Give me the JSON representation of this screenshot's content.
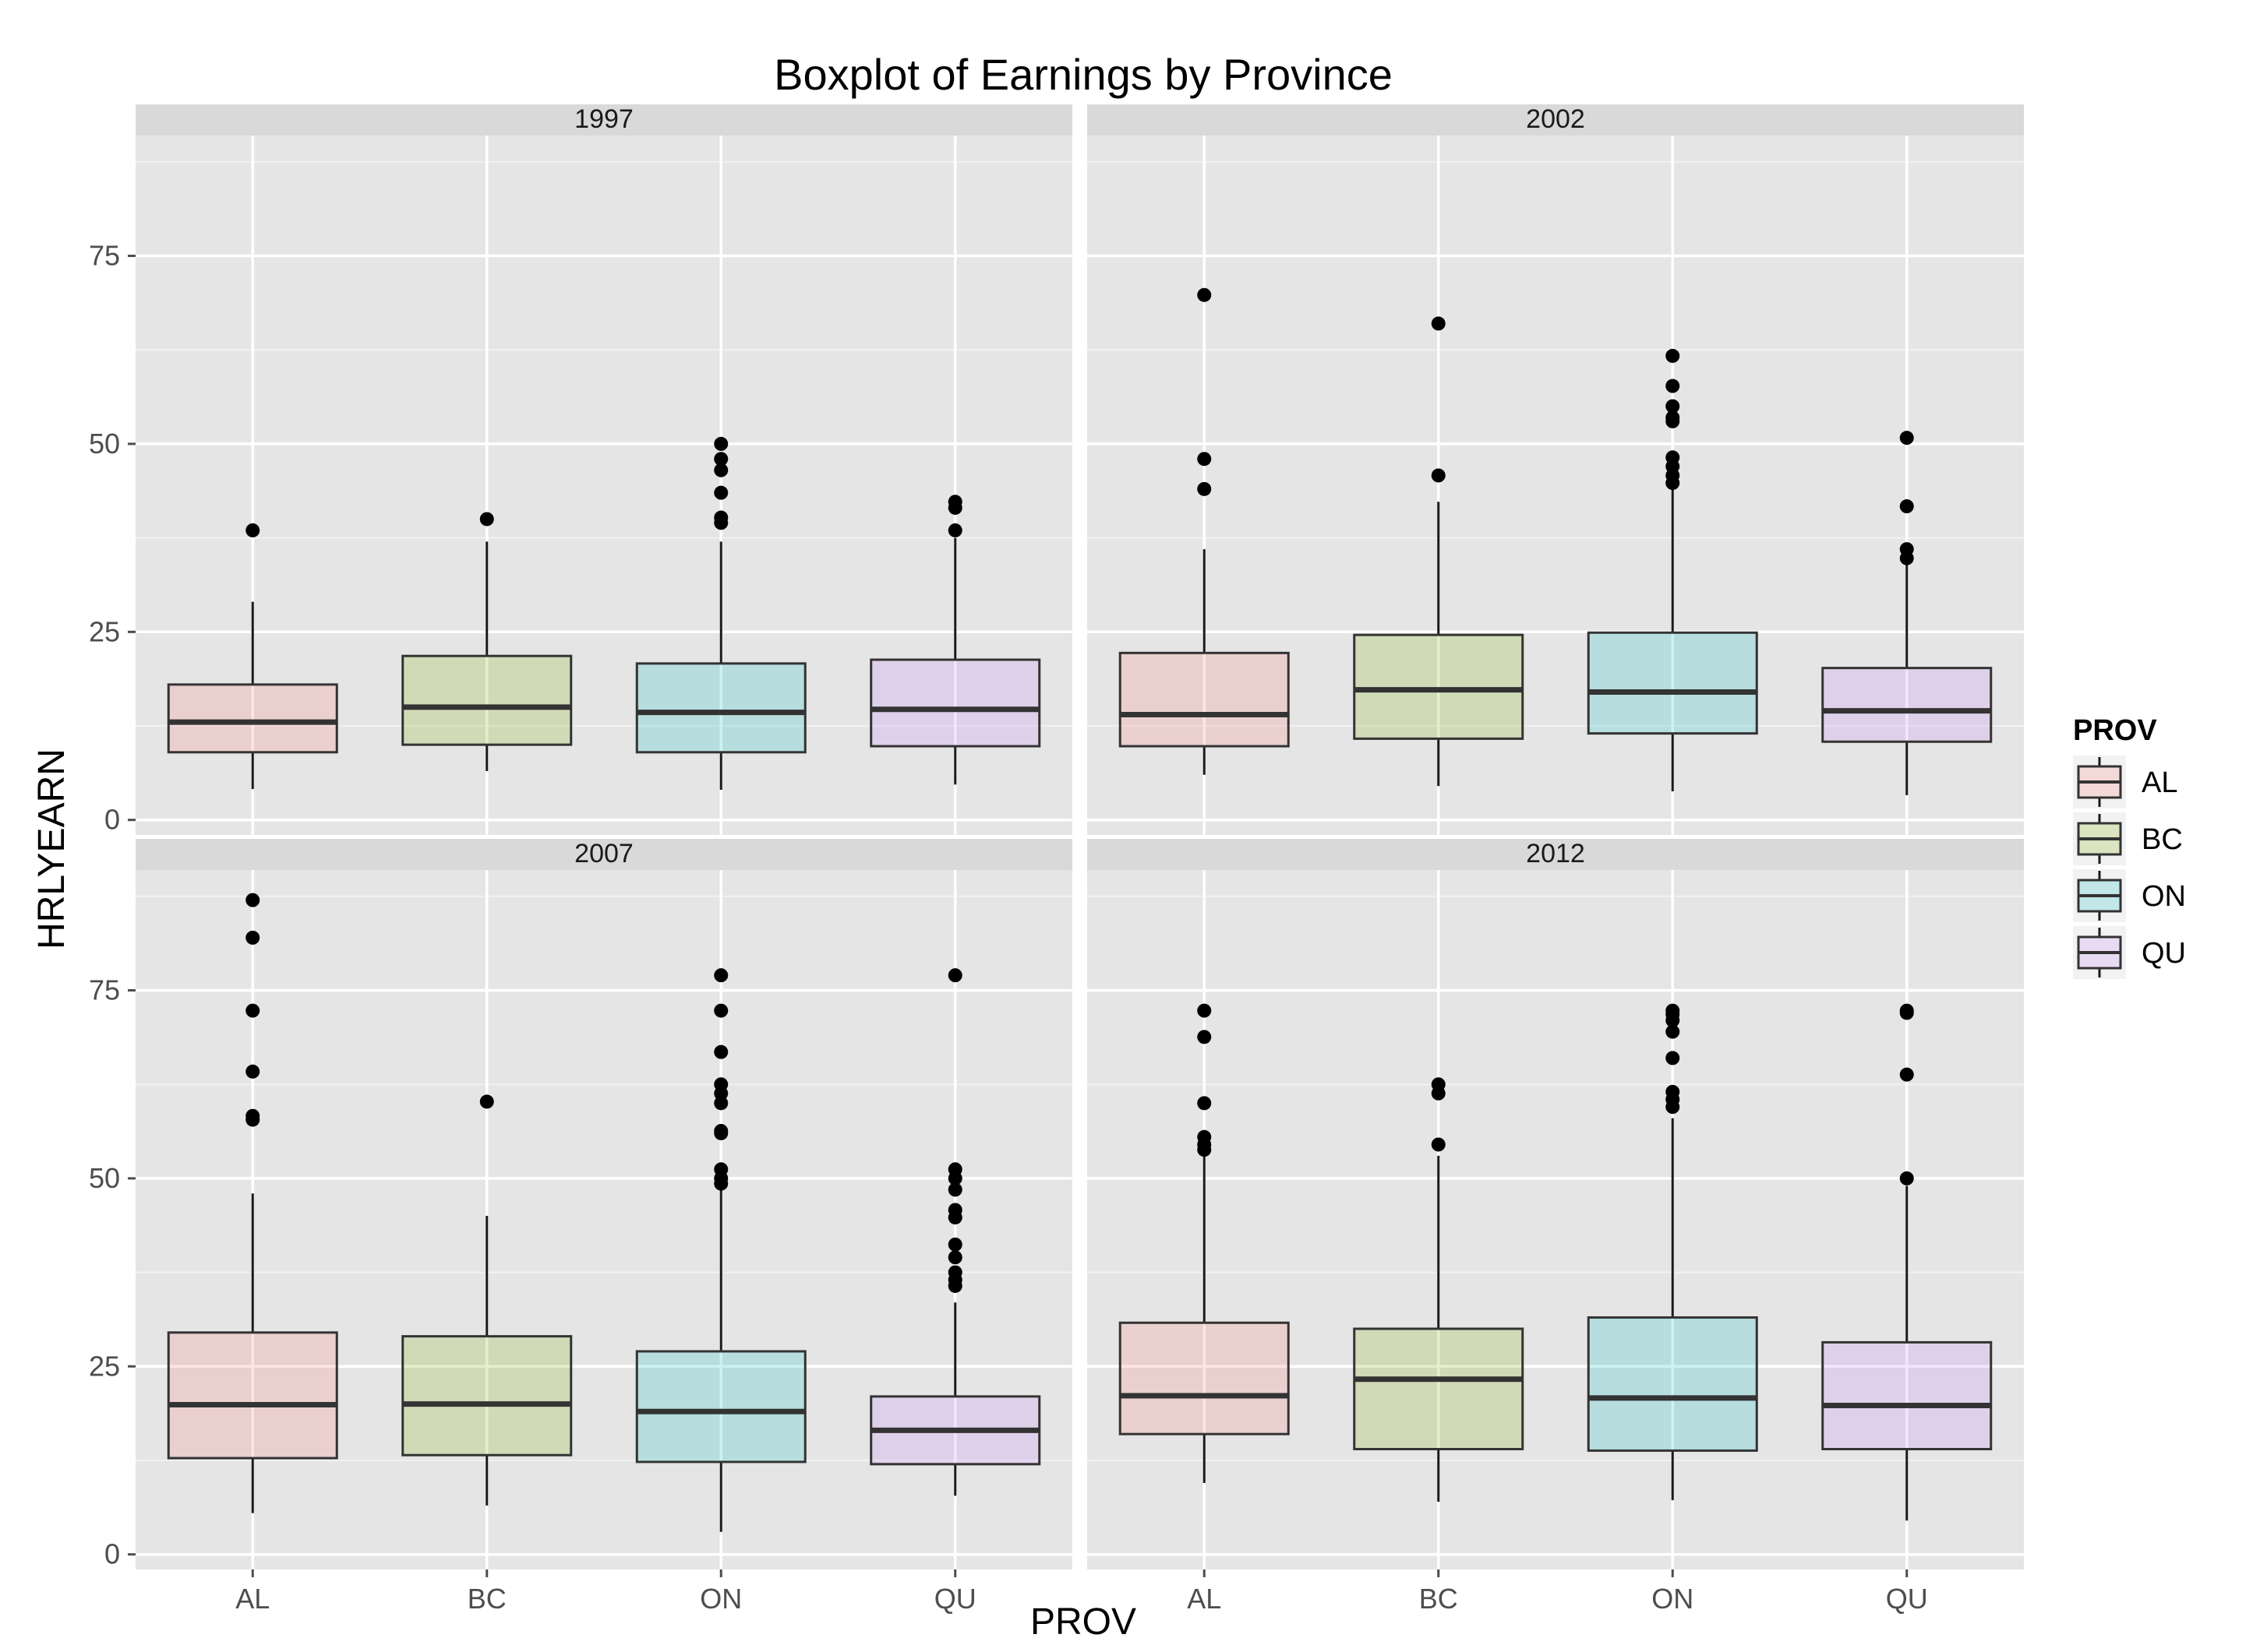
{
  "chart_data": {
    "type": "boxplot",
    "title": "Boxplot of Earnings by Province",
    "xlabel": "PROV",
    "ylabel": "HRLYEARN",
    "categories": [
      "AL",
      "BC",
      "ON",
      "QU"
    ],
    "yticks": [
      0,
      25,
      50,
      75
    ],
    "ylim": [
      -2,
      91
    ],
    "grid": true,
    "legend": {
      "title": "PROV",
      "placement": "right",
      "items": [
        "AL",
        "BC",
        "ON",
        "QU"
      ]
    },
    "colors": {
      "AL": "#f8766d",
      "BC": "#7cae00",
      "ON": "#00bfc4",
      "QU": "#c77cff"
    },
    "panels": [
      {
        "label": "1997",
        "boxes": [
          {
            "category": "AL",
            "whisker_low": 4.1,
            "q1": 9.0,
            "median": 13.0,
            "q3": 18.0,
            "whisker_high": 29.0,
            "outliers": [
              38.5
            ]
          },
          {
            "category": "BC",
            "whisker_low": 6.5,
            "q1": 10.0,
            "median": 15.0,
            "q3": 21.8,
            "whisker_high": 37.0,
            "outliers": [
              40.0
            ]
          },
          {
            "category": "ON",
            "whisker_low": 4.0,
            "q1": 9.0,
            "median": 14.3,
            "q3": 20.8,
            "whisker_high": 37.0,
            "outliers": [
              39.5,
              40.2,
              43.5,
              46.5,
              48.0,
              50.0
            ]
          },
          {
            "category": "QU",
            "whisker_low": 4.7,
            "q1": 9.8,
            "median": 14.7,
            "q3": 21.3,
            "whisker_high": 37.5,
            "outliers": [
              38.5,
              41.5,
              42.3
            ]
          }
        ]
      },
      {
        "label": "2002",
        "boxes": [
          {
            "category": "AL",
            "whisker_low": 6.0,
            "q1": 9.8,
            "median": 14.0,
            "q3": 22.2,
            "whisker_high": 36.0,
            "outliers": [
              44.0,
              48.0,
              69.8
            ]
          },
          {
            "category": "BC",
            "whisker_low": 4.5,
            "q1": 10.8,
            "median": 17.3,
            "q3": 24.6,
            "whisker_high": 42.3,
            "outliers": [
              45.8,
              66.0
            ]
          },
          {
            "category": "ON",
            "whisker_low": 3.8,
            "q1": 11.5,
            "median": 17.0,
            "q3": 24.9,
            "whisker_high": 44.0,
            "outliers": [
              44.8,
              45.8,
              47.0,
              48.2,
              53.0,
              53.5,
              55.0,
              57.7,
              61.7
            ]
          },
          {
            "category": "QU",
            "whisker_low": 3.3,
            "q1": 10.4,
            "median": 14.5,
            "q3": 20.2,
            "whisker_high": 34.5,
            "outliers": [
              34.8,
              36.0,
              41.7,
              50.8
            ]
          }
        ]
      },
      {
        "label": "2007",
        "boxes": [
          {
            "category": "AL",
            "whisker_low": 5.5,
            "q1": 12.8,
            "median": 19.9,
            "q3": 29.5,
            "whisker_high": 48.0,
            "outliers": [
              57.8,
              58.3,
              64.2,
              72.3,
              82.0,
              87.0
            ]
          },
          {
            "category": "BC",
            "whisker_low": 6.5,
            "q1": 13.2,
            "median": 20.0,
            "q3": 29.0,
            "whisker_high": 45.0,
            "outliers": [
              60.2
            ]
          },
          {
            "category": "ON",
            "whisker_low": 3.0,
            "q1": 12.3,
            "median": 19.0,
            "q3": 27.0,
            "whisker_high": 48.5,
            "outliers": [
              49.3,
              50.0,
              51.2,
              56.0,
              56.3,
              60.0,
              61.3,
              62.5,
              66.8,
              72.3,
              77.0
            ]
          },
          {
            "category": "QU",
            "whisker_low": 7.8,
            "q1": 12.0,
            "median": 16.5,
            "q3": 21.0,
            "whisker_high": 33.5,
            "outliers": [
              35.7,
              36.5,
              37.5,
              39.5,
              41.2,
              44.8,
              45.8,
              48.5,
              50.0,
              51.2,
              77.0
            ]
          }
        ]
      },
      {
        "label": "2012",
        "boxes": [
          {
            "category": "AL",
            "whisker_low": 9.5,
            "q1": 16.0,
            "median": 21.1,
            "q3": 30.8,
            "whisker_high": 53.0,
            "outliers": [
              53.8,
              54.5,
              55.5,
              60.0,
              68.8,
              72.3
            ]
          },
          {
            "category": "BC",
            "whisker_low": 7.0,
            "q1": 14.0,
            "median": 23.3,
            "q3": 30.0,
            "whisker_high": 53.0,
            "outliers": [
              54.5,
              61.3,
              62.5
            ]
          },
          {
            "category": "ON",
            "whisker_low": 7.2,
            "q1": 13.8,
            "median": 20.8,
            "q3": 31.5,
            "whisker_high": 58.0,
            "outliers": [
              59.5,
              60.5,
              61.5,
              66.0,
              69.5,
              71.0,
              71.8,
              72.3
            ]
          },
          {
            "category": "QU",
            "whisker_low": 4.5,
            "q1": 14.0,
            "median": 19.8,
            "q3": 28.2,
            "whisker_high": 49.0,
            "outliers": [
              50.0,
              63.8,
              72.0,
              72.3
            ]
          }
        ]
      }
    ]
  }
}
